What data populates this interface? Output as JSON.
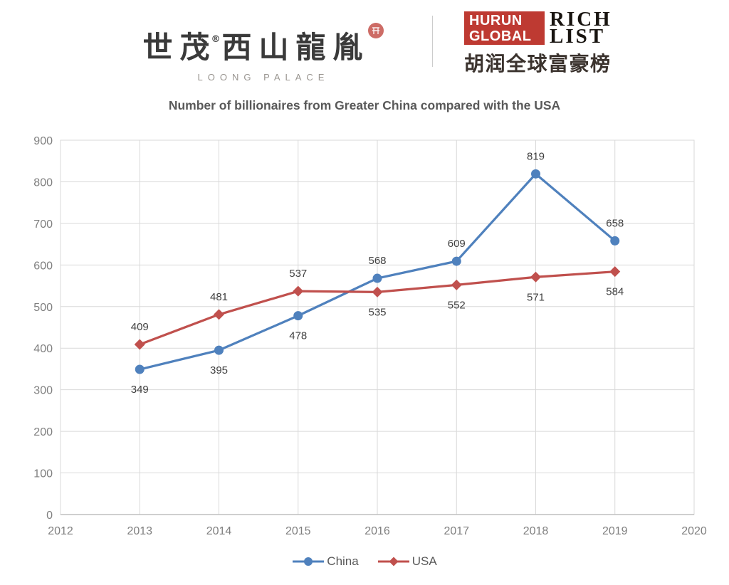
{
  "header": {
    "left_logo": {
      "cn_part1": "世茂",
      "registered_mark": "®",
      "cn_part2": "西山龍胤",
      "subtitle": "LOONG PALACE",
      "seal_color": "#c4524b"
    },
    "right_logo": {
      "box_line1": "HURUN",
      "box_line2": "GLOBAL",
      "serif_line1": "RICH",
      "serif_line2": "LIST",
      "cn_subtitle": "胡润全球富豪榜",
      "box_color": "#be3a32"
    }
  },
  "chart_data": {
    "type": "line",
    "title": "Number of billionaires from Greater China compared with the USA",
    "xlabel": "",
    "ylabel": "",
    "x": [
      2013,
      2014,
      2015,
      2016,
      2017,
      2018,
      2019
    ],
    "xlim": [
      2012,
      2020
    ],
    "ylim": [
      0,
      900
    ],
    "xticks": [
      2012,
      2013,
      2014,
      2015,
      2016,
      2017,
      2018,
      2019,
      2020
    ],
    "yticks": [
      0,
      100,
      200,
      300,
      400,
      500,
      600,
      700,
      800,
      900
    ],
    "grid": true,
    "legend_position": "bottom",
    "series": [
      {
        "name": "China",
        "color": "#4F81BD",
        "marker": "circle",
        "values": [
          349,
          395,
          478,
          568,
          609,
          819,
          658
        ],
        "label_positions": [
          "below",
          "below",
          "below",
          "above",
          "above",
          "above",
          "above"
        ]
      },
      {
        "name": "USA",
        "color": "#C0504D",
        "marker": "diamond",
        "values": [
          409,
          481,
          537,
          535,
          552,
          571,
          584
        ],
        "label_positions": [
          "above",
          "above",
          "above",
          "below",
          "below",
          "below",
          "below"
        ]
      }
    ],
    "colors": {
      "grid": "#D9D9D9",
      "axis": "#BFBFBF",
      "tick_label": "#7F7F7F",
      "data_label": "#404040",
      "title": "#595959"
    }
  }
}
